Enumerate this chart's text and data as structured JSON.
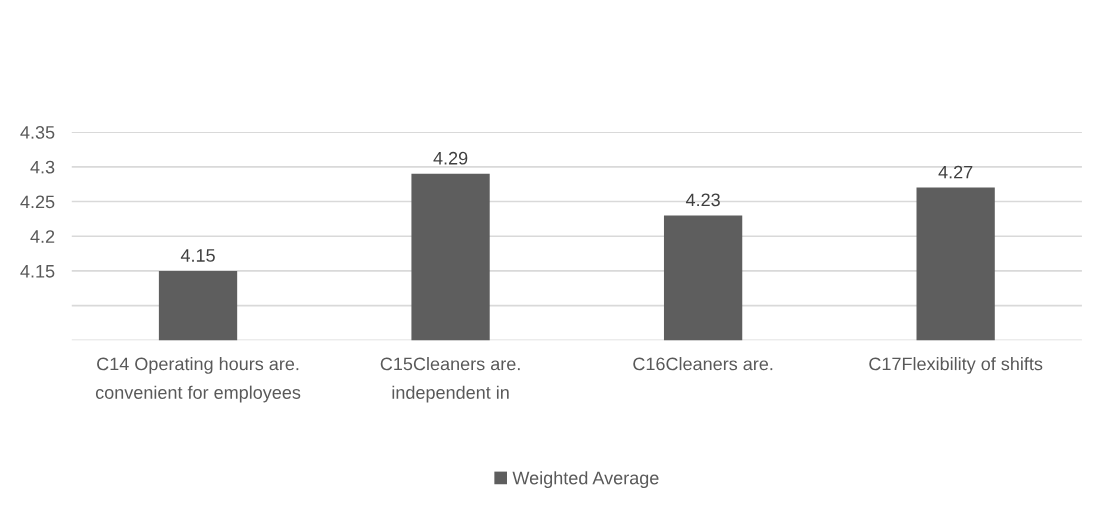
{
  "chart_data": {
    "type": "bar",
    "categories": [
      "C14 Operating hours are.\nconvenient for employees",
      "C15Cleaners are.\nindependent in",
      "C16Cleaners are.",
      "C17Flexibility of shifts"
    ],
    "series": [
      {
        "name": "Weighted Average",
        "color": "#5e5e5e",
        "values": [
          4.15,
          4.29,
          4.23,
          4.27
        ]
      }
    ],
    "ylim": [
      4.05,
      4.35
    ],
    "yticks": [
      {
        "value": 4.05,
        "label": null
      },
      {
        "value": 4.1,
        "label": null
      },
      4.15,
      {
        "value": 4.2,
        "label": "4.2"
      },
      4.25,
      {
        "value": 4.3,
        "label": "4.3"
      },
      4.35
    ],
    "grid": "y",
    "legend": "bottom",
    "data_labels": true
  }
}
